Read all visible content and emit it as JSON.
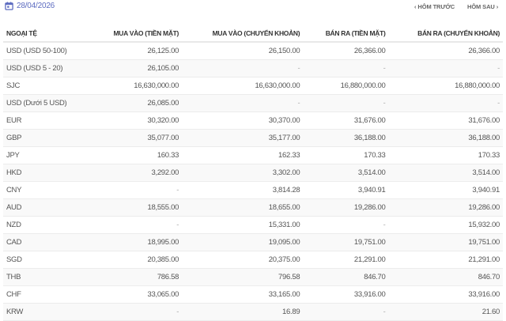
{
  "header": {
    "date": "28/04/2026",
    "date_icon": "calendar-icon",
    "prev_label": "HÔM TRƯỚC",
    "next_label": "HÔM SAU",
    "accent": "#5c6bc0"
  },
  "table": {
    "columns": [
      "NGOẠI TỆ",
      "MUA VÀO (TIỀN MẶT)",
      "MUA VÀO (CHUYỂN KHOẢN)",
      "BÁN RA (TIỀN MẶT)",
      "BÁN RA (CHUYỂN KHOẢN)"
    ],
    "rows": [
      [
        "USD (USD 50-100)",
        "26,125.00",
        "26,150.00",
        "26,366.00",
        "26,366.00"
      ],
      [
        "USD (USD 5 - 20)",
        "26,105.00",
        "-",
        "-",
        "-"
      ],
      [
        "SJC",
        "16,630,000.00",
        "16,630,000.00",
        "16,880,000.00",
        "16,880,000.00"
      ],
      [
        "USD (Dưới 5 USD)",
        "26,085.00",
        "-",
        "-",
        "-"
      ],
      [
        "EUR",
        "30,320.00",
        "30,370.00",
        "31,676.00",
        "31,676.00"
      ],
      [
        "GBP",
        "35,077.00",
        "35,177.00",
        "36,188.00",
        "36,188.00"
      ],
      [
        "JPY",
        "160.33",
        "162.33",
        "170.33",
        "170.33"
      ],
      [
        "HKD",
        "3,292.00",
        "3,302.00",
        "3,514.00",
        "3,514.00"
      ],
      [
        "CNY",
        "-",
        "3,814.28",
        "3,940.91",
        "3,940.91"
      ],
      [
        "AUD",
        "18,555.00",
        "18,655.00",
        "19,286.00",
        "19,286.00"
      ],
      [
        "NZD",
        "-",
        "15,331.00",
        "-",
        "15,932.00"
      ],
      [
        "CAD",
        "18,995.00",
        "19,095.00",
        "19,751.00",
        "19,751.00"
      ],
      [
        "SGD",
        "20,385.00",
        "20,375.00",
        "21,291.00",
        "21,291.00"
      ],
      [
        "THB",
        "786.58",
        "796.58",
        "846.70",
        "846.70"
      ],
      [
        "CHF",
        "33,065.00",
        "33,165.00",
        "33,916.00",
        "33,916.00"
      ],
      [
        "KRW",
        "-",
        "16.89",
        "-",
        "21.60"
      ]
    ]
  }
}
